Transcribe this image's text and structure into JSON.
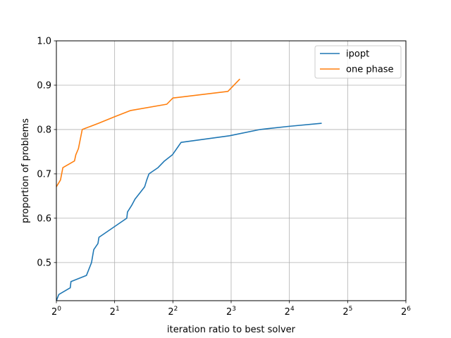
{
  "chart_data": {
    "type": "line",
    "xlabel": "iteration ratio to best solver",
    "ylabel": "proportion of problems",
    "xscale": "log2",
    "xlim": [
      1,
      64
    ],
    "ylim": [
      0.414,
      1.0
    ],
    "xticks": [
      {
        "value": 1,
        "base": "2",
        "exp": "0"
      },
      {
        "value": 2,
        "base": "2",
        "exp": "1"
      },
      {
        "value": 4,
        "base": "2",
        "exp": "2"
      },
      {
        "value": 8,
        "base": "2",
        "exp": "3"
      },
      {
        "value": 16,
        "base": "2",
        "exp": "4"
      },
      {
        "value": 32,
        "base": "2",
        "exp": "5"
      },
      {
        "value": 64,
        "base": "2",
        "exp": "6"
      }
    ],
    "yticks": [
      {
        "value": 0.5,
        "label": "0.5"
      },
      {
        "value": 0.6,
        "label": "0.6"
      },
      {
        "value": 0.7,
        "label": "0.7"
      },
      {
        "value": 0.8,
        "label": "0.8"
      },
      {
        "value": 0.9,
        "label": "0.9"
      },
      {
        "value": 1.0,
        "label": "1.0"
      }
    ],
    "grid": true,
    "legend_position": "top-right",
    "series": [
      {
        "name": "ipopt",
        "color": "#1f77b4",
        "points": [
          [
            1.0,
            0.414
          ],
          [
            1.03,
            0.428
          ],
          [
            1.18,
            0.443
          ],
          [
            1.19,
            0.457
          ],
          [
            1.43,
            0.471
          ],
          [
            1.52,
            0.5
          ],
          [
            1.56,
            0.529
          ],
          [
            1.64,
            0.543
          ],
          [
            1.66,
            0.557
          ],
          [
            2.31,
            0.6
          ],
          [
            2.33,
            0.614
          ],
          [
            2.45,
            0.629
          ],
          [
            2.55,
            0.643
          ],
          [
            2.7,
            0.657
          ],
          [
            2.86,
            0.671
          ],
          [
            2.93,
            0.686
          ],
          [
            3.01,
            0.7
          ],
          [
            3.35,
            0.714
          ],
          [
            3.62,
            0.729
          ],
          [
            3.98,
            0.743
          ],
          [
            4.41,
            0.771
          ],
          [
            7.84,
            0.786
          ],
          [
            11.3,
            0.8
          ],
          [
            15.8,
            0.807
          ],
          [
            23.5,
            0.814
          ]
        ]
      },
      {
        "name": "one phase",
        "color": "#ff7f0e",
        "points": [
          [
            1.0,
            0.671
          ],
          [
            1.05,
            0.686
          ],
          [
            1.08,
            0.714
          ],
          [
            1.24,
            0.729
          ],
          [
            1.26,
            0.743
          ],
          [
            1.3,
            0.757
          ],
          [
            1.36,
            0.8
          ],
          [
            1.65,
            0.814
          ],
          [
            2.0,
            0.829
          ],
          [
            2.42,
            0.843
          ],
          [
            3.72,
            0.857
          ],
          [
            4.0,
            0.871
          ],
          [
            7.7,
            0.886
          ],
          [
            8.88,
            0.914
          ]
        ]
      }
    ]
  }
}
